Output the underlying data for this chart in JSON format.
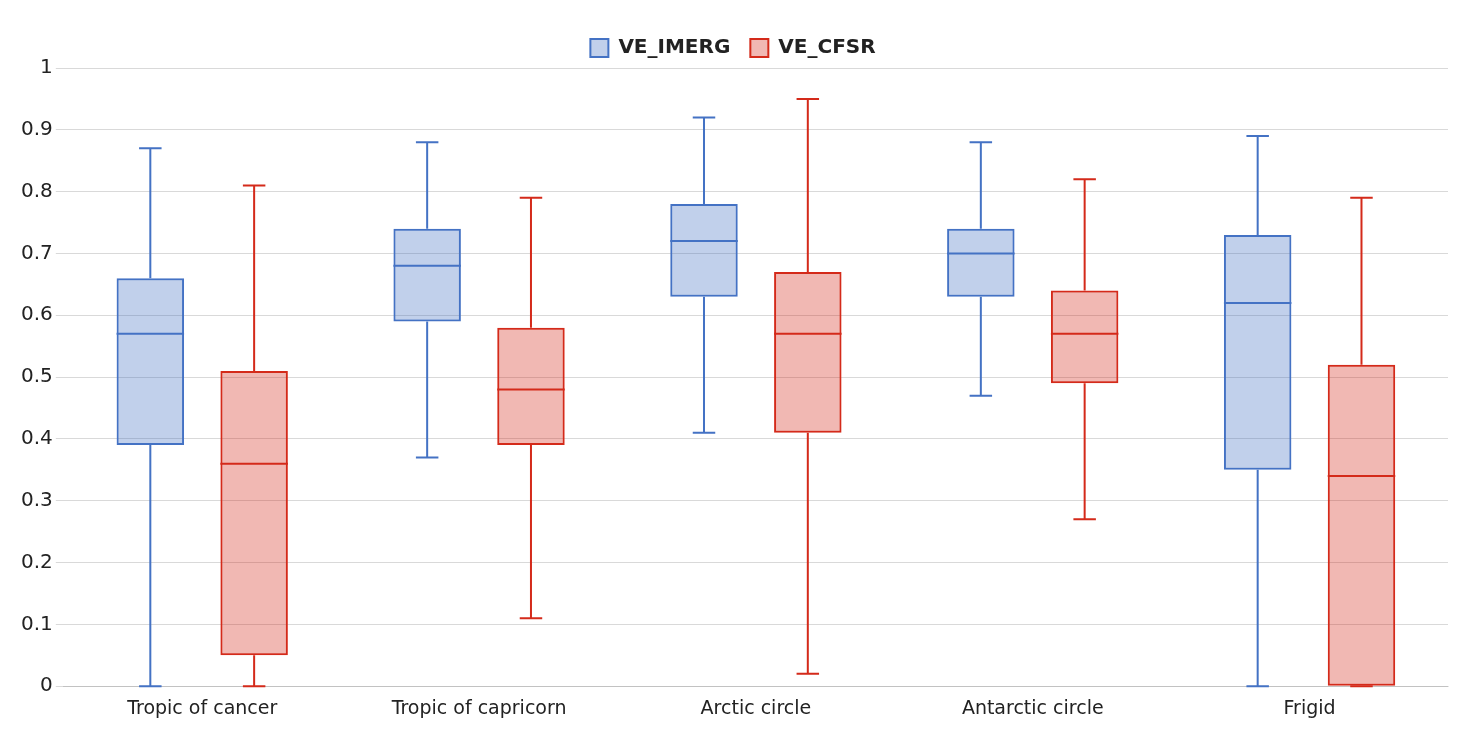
{
  "chart_data": {
    "type": "box",
    "categories": [
      "Tropic of cancer",
      "Tropic of capricorn",
      "Arctic circle",
      "Antarctic circle",
      "Frigid"
    ],
    "series": [
      {
        "name": "VE_IMERG",
        "color": "#4472c4",
        "boxes": [
          {
            "low": 0,
            "q1": 0.39,
            "median": 0.57,
            "q3": 0.66,
            "high": 0.87
          },
          {
            "low": 0.37,
            "q1": 0.59,
            "median": 0.68,
            "q3": 0.74,
            "high": 0.88
          },
          {
            "low": 0.41,
            "q1": 0.63,
            "median": 0.72,
            "q3": 0.78,
            "high": 0.92
          },
          {
            "low": 0.47,
            "q1": 0.63,
            "median": 0.7,
            "q3": 0.74,
            "high": 0.88
          },
          {
            "low": 0,
            "q1": 0.35,
            "median": 0.62,
            "q3": 0.73,
            "high": 0.89
          }
        ]
      },
      {
        "name": "VE_CFSR",
        "color": "#d42a1a",
        "boxes": [
          {
            "low": 0,
            "q1": 0.05,
            "median": 0.36,
            "q3": 0.51,
            "high": 0.81
          },
          {
            "low": 0.11,
            "q1": 0.39,
            "median": 0.48,
            "q3": 0.58,
            "high": 0.79
          },
          {
            "low": 0.02,
            "q1": 0.41,
            "median": 0.57,
            "q3": 0.67,
            "high": 0.95
          },
          {
            "low": 0.27,
            "q1": 0.49,
            "median": 0.57,
            "q3": 0.64,
            "high": 0.82
          },
          {
            "low": 0,
            "q1": 0,
            "median": 0.34,
            "q3": 0.52,
            "high": 0.79
          }
        ]
      }
    ],
    "ylim": [
      0,
      1
    ],
    "yticks": [
      0,
      0.1,
      0.2,
      0.3,
      0.4,
      0.5,
      0.6,
      0.7,
      0.8,
      0.9,
      1
    ],
    "grid": "y",
    "legend": "top"
  }
}
